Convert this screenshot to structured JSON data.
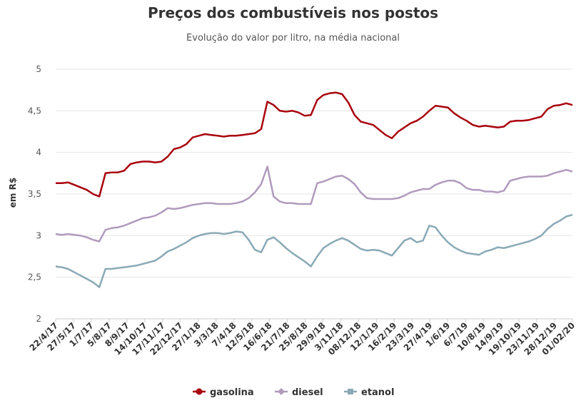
{
  "chart_data": {
    "type": "line",
    "title": "Preços dos combustíveis nos postos",
    "subtitle": "Evolução do valor por litro, na média nacional",
    "ylabel": "em R$",
    "xlabel": "",
    "ylim": [
      2,
      5
    ],
    "yticks": [
      2,
      2.5,
      3,
      3.5,
      4,
      4.5,
      5
    ],
    "ytick_labels": [
      "2",
      "2,5",
      "3",
      "3,5",
      "4",
      "4,5",
      "5"
    ],
    "grid": true,
    "legend": "bottom-center",
    "x_tick_labels": [
      "22/4/17",
      "27/5/17",
      "1/7/17",
      "5/8/17",
      "8/9/17",
      "14/10/17",
      "17/11/17",
      "22/12/17",
      "27/1/18",
      "3/3/18",
      "7/4/18",
      "12/5/18",
      "16/6/18",
      "21/7/18",
      "25/8/18",
      "29/9/18",
      "3/11/18",
      "08/12/18",
      "12/1/19",
      "16/2/19",
      "23/3/19",
      "27/4/19",
      "1/6/19",
      "6/7/19",
      "10/8/19",
      "14/9/19",
      "19/10/19",
      "23/11/19",
      "28/12/19",
      "01/02/20"
    ],
    "series": [
      {
        "name": "gasolina",
        "color": "#a8000d",
        "marker": "circle",
        "values": [
          3.63,
          3.63,
          3.64,
          3.61,
          3.58,
          3.55,
          3.5,
          3.47,
          3.75,
          3.76,
          3.76,
          3.78,
          3.86,
          3.88,
          3.89,
          3.89,
          3.88,
          3.89,
          3.95,
          4.04,
          4.06,
          4.1,
          4.18,
          4.2,
          4.22,
          4.21,
          4.2,
          4.19,
          4.2,
          4.2,
          4.21,
          4.22,
          4.23,
          4.28,
          4.61,
          4.57,
          4.5,
          4.49,
          4.5,
          4.48,
          4.44,
          4.45,
          4.63,
          4.69,
          4.71,
          4.72,
          4.7,
          4.6,
          4.45,
          4.37,
          4.35,
          4.33,
          4.27,
          4.21,
          4.17,
          4.25,
          4.3,
          4.35,
          4.38,
          4.43,
          4.5,
          4.56,
          4.55,
          4.54,
          4.47,
          4.42,
          4.38,
          4.33,
          4.31,
          4.32,
          4.31,
          4.3,
          4.31,
          4.37,
          4.38,
          4.38,
          4.39,
          4.41,
          4.43,
          4.52,
          4.56,
          4.57,
          4.59,
          4.57
        ]
      },
      {
        "name": "diesel",
        "color": "#b09bbd",
        "marker": "diamond",
        "values": [
          3.02,
          3.01,
          3.02,
          3.01,
          3.0,
          2.98,
          2.95,
          2.93,
          3.07,
          3.09,
          3.1,
          3.12,
          3.15,
          3.18,
          3.21,
          3.22,
          3.24,
          3.28,
          3.33,
          3.32,
          3.33,
          3.35,
          3.37,
          3.38,
          3.39,
          3.39,
          3.38,
          3.38,
          3.38,
          3.39,
          3.41,
          3.45,
          3.52,
          3.62,
          3.83,
          3.47,
          3.41,
          3.39,
          3.39,
          3.38,
          3.38,
          3.38,
          3.63,
          3.65,
          3.68,
          3.71,
          3.72,
          3.68,
          3.62,
          3.52,
          3.45,
          3.44,
          3.44,
          3.44,
          3.44,
          3.45,
          3.48,
          3.52,
          3.54,
          3.56,
          3.56,
          3.61,
          3.64,
          3.66,
          3.66,
          3.63,
          3.57,
          3.55,
          3.55,
          3.53,
          3.53,
          3.52,
          3.54,
          3.66,
          3.68,
          3.7,
          3.71,
          3.71,
          3.71,
          3.72,
          3.75,
          3.77,
          3.79,
          3.77
        ]
      },
      {
        "name": "etanol",
        "color": "#8aa9b6",
        "marker": "square",
        "values": [
          2.63,
          2.62,
          2.6,
          2.56,
          2.52,
          2.48,
          2.44,
          2.38,
          2.6,
          2.6,
          2.61,
          2.62,
          2.63,
          2.64,
          2.66,
          2.68,
          2.7,
          2.75,
          2.81,
          2.84,
          2.88,
          2.92,
          2.97,
          3.0,
          3.02,
          3.03,
          3.03,
          3.02,
          3.03,
          3.05,
          3.04,
          2.95,
          2.83,
          2.8,
          2.95,
          2.98,
          2.92,
          2.85,
          2.79,
          2.74,
          2.69,
          2.63,
          2.75,
          2.85,
          2.9,
          2.94,
          2.97,
          2.94,
          2.89,
          2.84,
          2.82,
          2.83,
          2.82,
          2.79,
          2.76,
          2.85,
          2.94,
          2.97,
          2.92,
          2.94,
          3.12,
          3.1,
          3.0,
          2.92,
          2.86,
          2.82,
          2.79,
          2.78,
          2.77,
          2.81,
          2.83,
          2.86,
          2.85,
          2.87,
          2.89,
          2.91,
          2.93,
          2.96,
          3.0,
          3.08,
          3.14,
          3.18,
          3.23,
          3.25
        ]
      }
    ]
  }
}
